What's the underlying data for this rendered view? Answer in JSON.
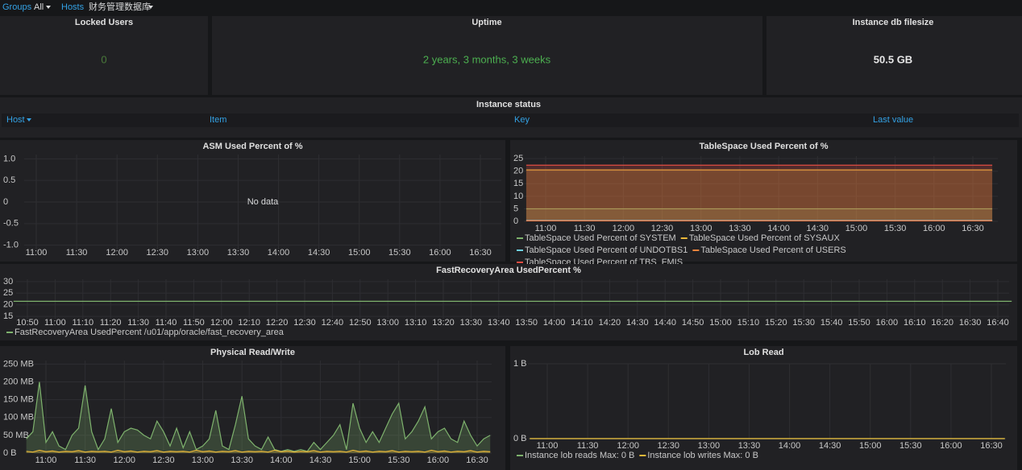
{
  "header": {
    "groups_label": "Groups",
    "groups_value": "All",
    "hosts_label": "Hosts",
    "hosts_value": "财务管理数据库"
  },
  "stats": [
    {
      "title": "Locked Users",
      "value": "0"
    },
    {
      "title": "Uptime",
      "value": "2 years, 3 months, 3 weeks"
    },
    {
      "title": "Instance db filesize",
      "value": "50.5 GB"
    }
  ],
  "table": {
    "title": "Instance status",
    "columns": [
      "Host",
      "Item",
      "Key",
      "Last value"
    ]
  },
  "chart_data": [
    {
      "type": "line",
      "title": "ASM Used Percent of %",
      "no_data": "No data",
      "series": [],
      "x": [],
      "ylim": [
        -1.1,
        1.1
      ],
      "yticks": [
        {
          "value": 1,
          "label": "1.0"
        },
        0.5,
        0,
        -0.5,
        {
          "value": -1,
          "label": "-1.0"
        }
      ],
      "xticks": [
        "11:00",
        "11:30",
        "12:00",
        "12:30",
        "13:00",
        "13:30",
        "14:00",
        "14:30",
        "15:00",
        "15:30",
        "16:00",
        "16:30"
      ],
      "grid": true
    },
    {
      "type": "area",
      "title": "TableSpace Used Percent of %",
      "x": [
        "10:45",
        "16:45"
      ],
      "ylim": [
        0,
        26
      ],
      "yticks": [
        0,
        5,
        10,
        15,
        20,
        25
      ],
      "xticks": [
        "11:00",
        "11:30",
        "12:00",
        "12:30",
        "13:00",
        "13:30",
        "14:00",
        "14:30",
        "15:00",
        "15:30",
        "16:00",
        "16:30"
      ],
      "grid": true,
      "series": [
        {
          "name": "TableSpace Used Percent of SYSTEM",
          "color": "#7eb26d",
          "values": [
            5,
            5
          ]
        },
        {
          "name": "TableSpace Used Percent of SYSAUX",
          "color": "#eab839",
          "values": [
            20.5,
            20.5
          ]
        },
        {
          "name": "TableSpace Used Percent of UNDOTBS1",
          "color": "#6ed0e0",
          "values": [
            0.4,
            0.4
          ]
        },
        {
          "name": "TableSpace Used Percent of USERS",
          "color": "#ef843c",
          "values": [
            0.2,
            0.2
          ]
        },
        {
          "name": "TableSpace Used Percent of TBS_FMIS",
          "color": "#e24d42",
          "values": [
            22.4,
            22.4
          ]
        }
      ]
    },
    {
      "type": "line",
      "title": "FastRecoveryArea UsedPercent %",
      "x": [
        "10:45",
        "16:45"
      ],
      "ylim": [
        14,
        31
      ],
      "yticks": [
        15,
        20,
        25,
        30
      ],
      "xticks": [
        "10:50",
        "11:00",
        "11:10",
        "11:20",
        "11:30",
        "11:40",
        "11:50",
        "12:00",
        "12:10",
        "12:20",
        "12:30",
        "12:40",
        "12:50",
        "13:00",
        "13:10",
        "13:20",
        "13:30",
        "13:40",
        "13:50",
        "14:00",
        "14:10",
        "14:20",
        "14:30",
        "14:40",
        "14:50",
        "15:00",
        "15:10",
        "15:20",
        "15:30",
        "15:40",
        "15:50",
        "16:00",
        "16:10",
        "16:20",
        "16:30",
        "16:40"
      ],
      "grid": true,
      "series": [
        {
          "name": "FastRecoveryArea UsedPercent /u01/app/oracle/fast_recovery_area",
          "color": "#7eb26d",
          "values": [
            21.5,
            21.5
          ]
        }
      ]
    },
    {
      "type": "area",
      "title": "Physical Read/Write",
      "ylim": [
        0,
        260
      ],
      "yticks": [
        {
          "value": 0,
          "label": "0 B"
        },
        {
          "value": 50,
          "label": "50 MB"
        },
        {
          "value": 100,
          "label": "100 MB"
        },
        {
          "value": 150,
          "label": "150 MB"
        },
        {
          "value": 200,
          "label": "200 MB"
        },
        {
          "value": 250,
          "label": "250 MB"
        }
      ],
      "xticks": [
        "11:00",
        "11:30",
        "12:00",
        "12:30",
        "13:00",
        "13:30",
        "14:00",
        "14:30",
        "15:00",
        "15:30",
        "16:00",
        "16:30"
      ],
      "grid": true,
      "x": [
        "10:45",
        "10:50",
        "10:55",
        "11:00",
        "11:05",
        "11:10",
        "11:15",
        "11:20",
        "11:25",
        "11:30",
        "11:35",
        "11:40",
        "11:45",
        "11:50",
        "11:55",
        "12:00",
        "12:05",
        "12:10",
        "12:15",
        "12:20",
        "12:25",
        "12:30",
        "12:35",
        "12:40",
        "12:45",
        "12:50",
        "12:55",
        "13:00",
        "13:05",
        "13:10",
        "13:15",
        "13:20",
        "13:25",
        "13:30",
        "13:35",
        "13:40",
        "13:45",
        "13:50",
        "13:55",
        "14:00",
        "14:05",
        "14:10",
        "14:15",
        "14:20",
        "14:25",
        "14:30",
        "14:35",
        "14:40",
        "14:45",
        "14:50",
        "14:55",
        "15:00",
        "15:05",
        "15:10",
        "15:15",
        "15:20",
        "15:25",
        "15:30",
        "15:35",
        "15:40",
        "15:45",
        "15:50",
        "15:55",
        "16:00",
        "16:05",
        "16:10",
        "16:15",
        "16:20",
        "16:25",
        "16:30",
        "16:35",
        "16:40"
      ],
      "series": [
        {
          "color": "#7eb26d",
          "values": [
            40,
            60,
            200,
            30,
            60,
            20,
            10,
            50,
            70,
            190,
            60,
            10,
            40,
            125,
            30,
            60,
            70,
            65,
            50,
            40,
            90,
            60,
            20,
            70,
            15,
            60,
            10,
            20,
            40,
            120,
            20,
            10,
            80,
            160,
            40,
            20,
            10,
            45,
            10,
            5,
            10,
            5,
            10,
            5,
            30,
            10,
            30,
            50,
            80,
            10,
            140,
            70,
            30,
            60,
            30,
            70,
            110,
            140,
            40,
            60,
            90,
            130,
            40,
            60,
            70,
            40,
            30,
            90,
            50,
            20,
            40,
            50
          ]
        },
        {
          "color": "#eab839",
          "values": [
            5,
            3,
            8,
            4,
            6,
            3,
            5,
            4,
            7,
            3,
            5,
            4,
            5,
            3,
            8,
            4,
            6,
            3,
            5,
            4,
            7,
            3,
            5,
            4,
            5,
            3,
            8,
            4,
            6,
            3,
            5,
            4,
            7,
            3,
            5,
            4,
            5,
            3,
            8,
            4,
            6,
            3,
            5,
            4,
            7,
            3,
            5,
            4,
            5,
            3,
            8,
            4,
            6,
            3,
            5,
            4,
            7,
            3,
            5,
            4,
            5,
            3,
            8,
            4,
            6,
            3,
            5,
            4,
            7,
            3,
            5,
            4
          ]
        }
      ]
    },
    {
      "type": "line",
      "title": "Lob Read",
      "x": [
        "10:47",
        "16:40"
      ],
      "ylim": [
        0,
        1
      ],
      "yticks": [
        {
          "value": 0,
          "label": "0 B"
        },
        {
          "value": 1,
          "label": "1 B"
        }
      ],
      "xticks": [
        "11:00",
        "11:30",
        "12:00",
        "12:30",
        "13:00",
        "13:30",
        "14:00",
        "14:30",
        "15:00",
        "15:30",
        "16:00",
        "16:30"
      ],
      "grid": true,
      "series": [
        {
          "name": "Instance lob reads Max: 0 B",
          "color": "#7eb26d",
          "values": [
            0,
            0
          ]
        },
        {
          "name": "Instance lob writes Max: 0 B",
          "color": "#eab839",
          "values": [
            0,
            0
          ]
        }
      ]
    }
  ]
}
